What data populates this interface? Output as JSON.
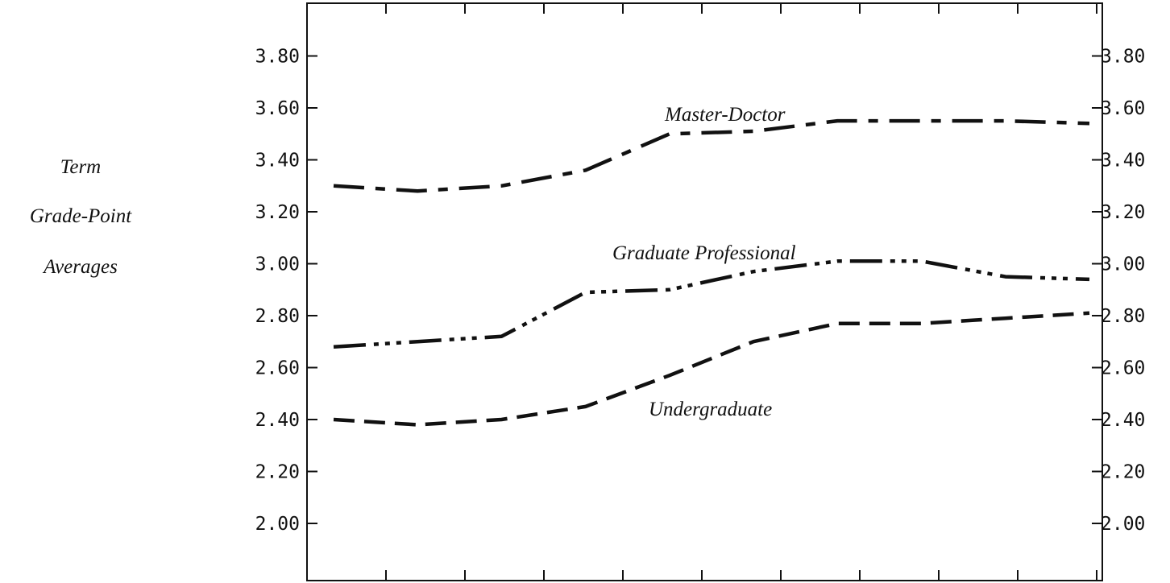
{
  "chart_data": {
    "type": "line",
    "title": "",
    "xlabel": "",
    "ylabel": [
      "Term",
      "Grade-Point",
      "Averages"
    ],
    "ylim": [
      1.8,
      4.0
    ],
    "yticks": [
      "2.00",
      "2.20",
      "2.40",
      "2.60",
      "2.80",
      "3.00",
      "3.20",
      "3.40",
      "3.60",
      "3.80"
    ],
    "x_tick_count": 10,
    "x": [
      0,
      1,
      2,
      3,
      4,
      5,
      6,
      7,
      8,
      9
    ],
    "grid": false,
    "legend": "inline labels",
    "series": [
      {
        "name": "Master-Doctor",
        "style": "long-dash-dot",
        "values": [
          3.3,
          3.28,
          3.3,
          3.36,
          3.5,
          3.51,
          3.55,
          3.55,
          3.55,
          3.54
        ]
      },
      {
        "name": "Graduate Professional",
        "style": "dash-dot-dot",
        "values": [
          2.68,
          2.7,
          2.72,
          2.89,
          2.9,
          2.97,
          3.01,
          3.01,
          2.95,
          2.94
        ]
      },
      {
        "name": "Undergraduate",
        "style": "dash",
        "values": [
          2.4,
          2.38,
          2.4,
          2.45,
          2.57,
          2.7,
          2.77,
          2.77,
          2.79,
          2.81
        ]
      }
    ]
  }
}
